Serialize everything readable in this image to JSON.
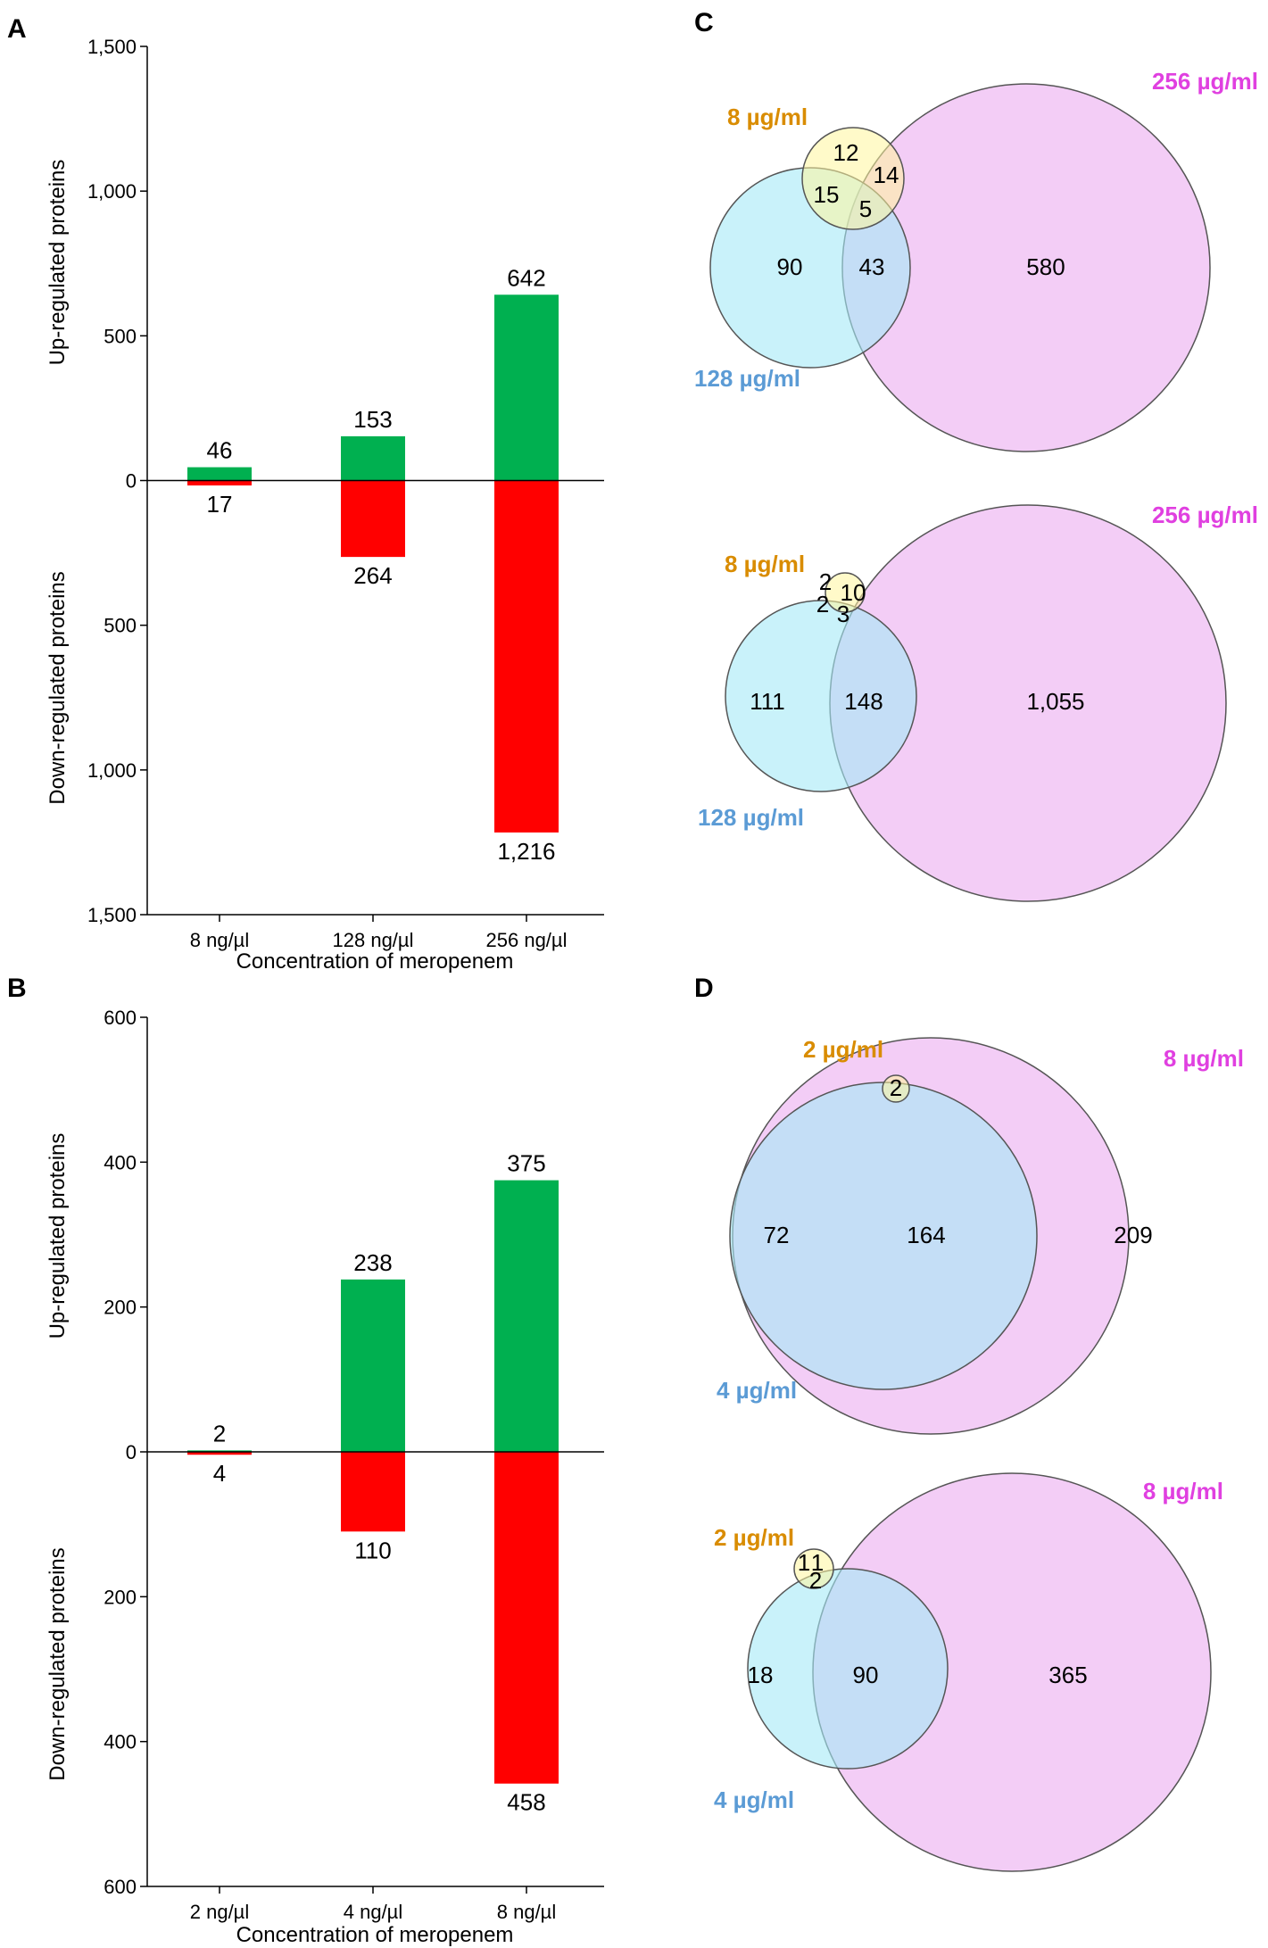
{
  "colors": {
    "up": "#00b050",
    "down": "#ff0000",
    "setSmall": "#d98c00",
    "setMid": "#5b9bd5",
    "setLarge": "#e040e0",
    "fillSmall": "#fff59d",
    "fillMid": "#a5eaf7",
    "fillLarge": "#f1c4f5",
    "fillOverlap": "#b3b9f3"
  },
  "panels": {
    "a": "A",
    "b": "B",
    "c": "C",
    "d": "D"
  },
  "chart_data": [
    {
      "panel": "A",
      "type": "bar",
      "subtype": "diverging",
      "xlabel": "Concentration of meropenem",
      "ylabel_up": "Up-regulated proteins",
      "ylabel_down": "Down-regulated proteins",
      "categories": [
        "8 ng/µl",
        "128 ng/µl",
        "256 ng/µl"
      ],
      "series": [
        {
          "name": "Up-regulated proteins",
          "values": [
            46,
            153,
            642
          ],
          "labels": [
            "46",
            "153",
            "642"
          ]
        },
        {
          "name": "Down-regulated proteins",
          "values": [
            17,
            264,
            1216
          ],
          "labels": [
            "17",
            "264",
            "1,216"
          ]
        }
      ],
      "ylim": [
        -1500,
        1500
      ],
      "yticks": [
        1500,
        1000,
        500,
        0,
        -500,
        -1000,
        -1500
      ],
      "ytick_labels": [
        "1,500",
        "1,000",
        "500",
        "0",
        "500",
        "1,000",
        "1,500"
      ]
    },
    {
      "panel": "B",
      "type": "bar",
      "subtype": "diverging",
      "xlabel": "Concentration of meropenem",
      "ylabel_up": "Up-regulated proteins",
      "ylabel_down": "Down-regulated proteins",
      "categories": [
        "2 ng/µl",
        "4 ng/µl",
        "8 ng/µl"
      ],
      "series": [
        {
          "name": "Up-regulated proteins",
          "values": [
            2,
            238,
            375
          ],
          "labels": [
            "2",
            "238",
            "375"
          ]
        },
        {
          "name": "Down-regulated proteins",
          "values": [
            4,
            110,
            458
          ],
          "labels": [
            "4",
            "110",
            "458"
          ]
        }
      ],
      "ylim": [
        -600,
        600
      ],
      "yticks": [
        600,
        400,
        200,
        0,
        -200,
        -400,
        -600
      ],
      "ytick_labels": [
        "600",
        "400",
        "200",
        "0",
        "200",
        "400",
        "600"
      ]
    },
    {
      "panel": "C",
      "type": "venn",
      "diagrams": [
        {
          "sets": [
            "8 µg/ml",
            "128 µg/ml",
            "256 µg/ml"
          ],
          "regions": {
            "only_small": "12",
            "small_mid": "15",
            "small_large": "14",
            "all_three": "5",
            "only_mid": "90",
            "mid_large": "43",
            "only_large": "580"
          }
        },
        {
          "sets": [
            "8 µg/ml",
            "128 µg/ml",
            "256 µg/ml"
          ],
          "regions": {
            "only_small": "2",
            "small_mid": "2",
            "small_large": "10",
            "all_three": "3",
            "only_mid": "111",
            "mid_large": "148",
            "only_large": "1,055"
          }
        }
      ]
    },
    {
      "panel": "D",
      "type": "venn",
      "diagrams": [
        {
          "sets": [
            "2 µg/ml",
            "4 µg/ml",
            "8 µg/ml"
          ],
          "regions": {
            "all_three": "2",
            "only_mid": "72",
            "mid_large": "164",
            "only_large": "209"
          }
        },
        {
          "sets": [
            "2 µg/ml",
            "4 µg/ml",
            "8 µg/ml"
          ],
          "regions": {
            "only_small": "1",
            "small_large": "1",
            "all_three": "2",
            "only_mid": "18",
            "mid_large": "90",
            "only_large": "365"
          }
        }
      ]
    }
  ]
}
